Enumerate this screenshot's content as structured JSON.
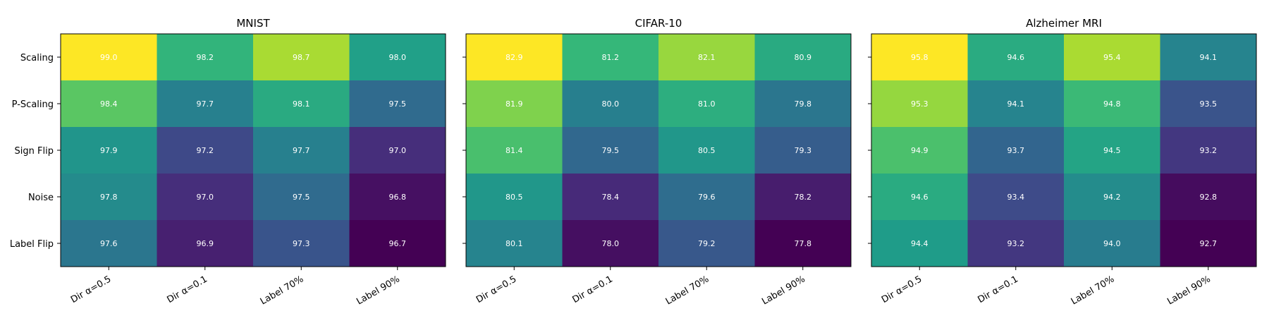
{
  "chart_data": [
    {
      "type": "heatmap",
      "title": "MNIST",
      "rows": [
        "Scaling",
        "P-Scaling",
        "Sign Flip",
        "Noise",
        "Label Flip"
      ],
      "columns": [
        "Dir α=0.5",
        "Dir α=0.1",
        "Label 70%",
        "Label 90%"
      ],
      "values": [
        [
          99.0,
          98.2,
          98.7,
          98.0
        ],
        [
          98.4,
          97.7,
          98.1,
          97.5
        ],
        [
          97.9,
          97.2,
          97.7,
          97.0
        ],
        [
          97.8,
          97.0,
          97.5,
          96.8
        ],
        [
          97.6,
          96.9,
          97.3,
          96.7
        ]
      ],
      "colormap": "viridis"
    },
    {
      "type": "heatmap",
      "title": "CIFAR-10",
      "rows": [
        "Scaling",
        "P-Scaling",
        "Sign Flip",
        "Noise",
        "Label Flip"
      ],
      "columns": [
        "Dir α=0.5",
        "Dir α=0.1",
        "Label 70%",
        "Label 90%"
      ],
      "values": [
        [
          82.9,
          81.2,
          82.1,
          80.9
        ],
        [
          81.9,
          80.0,
          81.0,
          79.8
        ],
        [
          81.4,
          79.5,
          80.5,
          79.3
        ],
        [
          80.5,
          78.4,
          79.6,
          78.2
        ],
        [
          80.1,
          78.0,
          79.2,
          77.8
        ]
      ],
      "colormap": "viridis"
    },
    {
      "type": "heatmap",
      "title": "Alzheimer MRI",
      "rows": [
        "Scaling",
        "P-Scaling",
        "Sign Flip",
        "Noise",
        "Label Flip"
      ],
      "columns": [
        "Dir α=0.5",
        "Dir α=0.1",
        "Label 70%",
        "Label 90%"
      ],
      "values": [
        [
          95.8,
          94.6,
          95.4,
          94.1
        ],
        [
          95.3,
          94.1,
          94.8,
          93.5
        ],
        [
          94.9,
          93.7,
          94.5,
          93.2
        ],
        [
          94.6,
          93.4,
          94.2,
          92.8
        ],
        [
          94.4,
          93.2,
          94.0,
          92.7
        ]
      ],
      "colormap": "viridis"
    }
  ]
}
